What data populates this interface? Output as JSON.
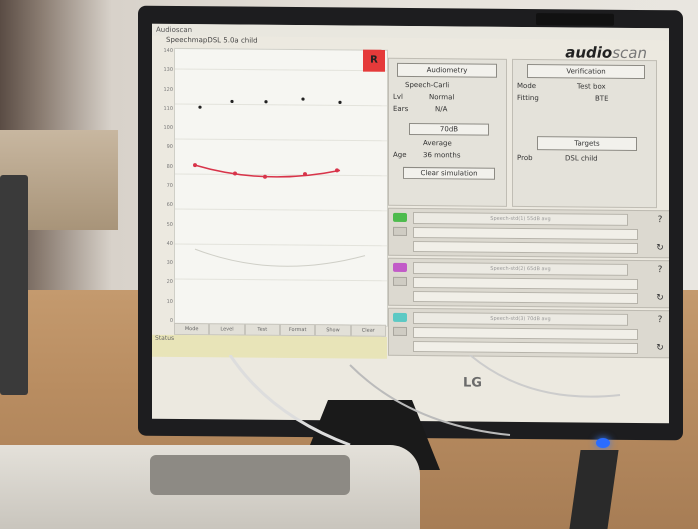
{
  "window": {
    "title": "Audioscan"
  },
  "graph": {
    "title": "SpeechmapDSL 5.0a child",
    "y_ticks": [
      "140",
      "130",
      "120",
      "110",
      "100",
      "90",
      "80",
      "70",
      "60",
      "50",
      "40",
      "30",
      "20",
      "10",
      "0"
    ],
    "record_button": "R",
    "x_buttons": [
      "Mode",
      "Level",
      "Test",
      "Format",
      "Show",
      "Clear"
    ]
  },
  "brand": {
    "name": "audio",
    "name_suffix": "scan"
  },
  "test_panel": {
    "audiometry_button": "Audiometry",
    "stimulus_value": "Speech-Carli",
    "level_label": "Lvl",
    "level_value": "Normal",
    "ears_label": "Ears",
    "ears_value": "N/A",
    "format_value": "70dB",
    "average_label": "Average",
    "age_label": "Age",
    "age_value": "36 months",
    "clear_button": "Clear simulation"
  },
  "verify_panel": {
    "verification_button": "Verification",
    "mode_label": "Mode",
    "mode_value": "Test box",
    "fitting_label": "Fitting",
    "fitting_value": "BTE",
    "targets_button": "Targets",
    "prob_label": "Prob",
    "prob_value": "DSL child"
  },
  "slots": [
    {
      "chip_color": "#4dbb4d",
      "text": "Speech-std(1) 55dB avg"
    },
    {
      "chip_color": "#c25bc8",
      "text": "Speech-std(2) 65dB avg"
    },
    {
      "chip_color": "#5cc9c4",
      "text": "Speech-std(3) 70dB avg"
    }
  ],
  "status": {
    "text": "Status"
  },
  "monitor_logo": "LG"
}
